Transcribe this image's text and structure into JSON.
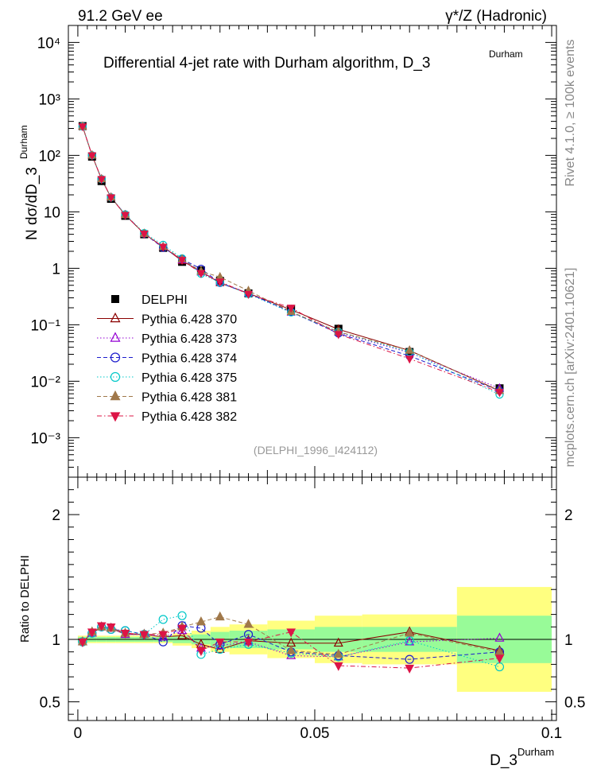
{
  "header": {
    "left": "91.2 GeV ee",
    "right": "γ*/Z (Hadronic)"
  },
  "side_labels": {
    "rivet": "Rivet 4.1.0, ≥ 100k events",
    "mcplots": "mcplots.cern.ch [arXiv:2401.10621]"
  },
  "chart_data": [
    {
      "type": "scatter",
      "title": "Differential 4-jet rate with Durham algorithm, D_3",
      "title_sup": "Durham",
      "analysis_id": "(DELPHI_1996_I424112)",
      "ylabel": "N  dσ/dD_3",
      "ylabel_sup": "Durham",
      "yscale": "log",
      "ylim": [
        0.0002,
        20000
      ],
      "xlim": [
        -0.002,
        0.101
      ],
      "y_tick_labels": [
        "10⁻³",
        "10⁻²",
        "10⁻¹",
        "1",
        "10",
        "10²",
        "10³",
        "10⁴"
      ],
      "legend_position": "middle-left",
      "x": [
        0.001,
        0.003,
        0.005,
        0.007,
        0.01,
        0.014,
        0.018,
        0.022,
        0.026,
        0.03,
        0.036,
        0.045,
        0.055,
        0.07,
        0.089
      ],
      "series": [
        {
          "name": "DELPHI",
          "color": "#000000",
          "marker": "square",
          "line": "none",
          "values": [
            330,
            95,
            35,
            17,
            8.5,
            4.0,
            2.3,
            1.3,
            0.92,
            0.6,
            0.36,
            0.19,
            0.085,
            0.033,
            0.0075
          ]
        },
        {
          "name": "Pythia 6.428 370",
          "color": "#8b0000",
          "marker": "triangle-open",
          "line": "solid",
          "values": [
            325,
            100,
            38,
            18,
            8.8,
            4.1,
            2.4,
            1.35,
            0.88,
            0.55,
            0.36,
            0.185,
            0.083,
            0.035,
            0.0068
          ]
        },
        {
          "name": "Pythia 6.428 373",
          "color": "#9400d3",
          "marker": "triangle-open",
          "line": "dotted",
          "values": [
            325,
            100,
            38,
            18,
            8.8,
            4.1,
            2.4,
            1.4,
            0.85,
            0.57,
            0.36,
            0.165,
            0.073,
            0.032,
            0.0075
          ]
        },
        {
          "name": "Pythia 6.428 374",
          "color": "#1c1ccd",
          "marker": "circle-open",
          "line": "dashed",
          "values": [
            325,
            100,
            38,
            18,
            9.0,
            4.1,
            2.3,
            1.45,
            0.98,
            0.55,
            0.36,
            0.17,
            0.07,
            0.028,
            0.0068
          ]
        },
        {
          "name": "Pythia 6.428 375",
          "color": "#00c8c8",
          "marker": "circle-open",
          "line": "dotted",
          "values": [
            325,
            100,
            38,
            18,
            9.0,
            4.2,
            2.6,
            1.5,
            0.8,
            0.56,
            0.35,
            0.165,
            0.075,
            0.033,
            0.0058
          ]
        },
        {
          "name": "Pythia 6.428 381",
          "color": "#a0784a",
          "marker": "triangle-filled",
          "line": "dashed",
          "values": [
            325,
            100,
            38,
            18,
            8.8,
            4.1,
            2.4,
            1.45,
            0.88,
            0.7,
            0.4,
            0.17,
            0.075,
            0.035,
            0.0068
          ]
        },
        {
          "name": "Pythia 6.428 382",
          "color": "#dc1446",
          "marker": "triangle-down-filled",
          "line": "dashdot",
          "values": [
            325,
            100,
            38,
            18,
            8.8,
            4.1,
            2.4,
            1.4,
            0.82,
            0.58,
            0.35,
            0.2,
            0.068,
            0.025,
            0.0064
          ]
        }
      ]
    },
    {
      "type": "scatter",
      "title": "",
      "ylabel": "Ratio to DELPHI",
      "xlabel": "D_3",
      "xlabel_sup": "Durham",
      "ylim": [
        0.35,
        2.3
      ],
      "xlim": [
        -0.002,
        0.101
      ],
      "y_ticks": [
        0.5,
        1,
        2
      ],
      "y_tick_labels": [
        "0.5",
        "1",
        "2"
      ],
      "x_ticks": [
        0,
        0.05,
        0.1
      ],
      "x_tick_labels": [
        "0",
        "0.05",
        "0.1"
      ],
      "bands": {
        "edges": [
          0,
          0.002,
          0.004,
          0.006,
          0.008,
          0.012,
          0.016,
          0.02,
          0.024,
          0.028,
          0.032,
          0.04,
          0.05,
          0.06,
          0.08,
          0.1
        ],
        "inner_half_width": [
          0.02,
          0.02,
          0.02,
          0.02,
          0.02,
          0.02,
          0.02,
          0.03,
          0.04,
          0.06,
          0.07,
          0.08,
          0.1,
          0.1,
          0.19
        ],
        "outer_half_width": [
          0.03,
          0.03,
          0.03,
          0.03,
          0.03,
          0.03,
          0.03,
          0.05,
          0.07,
          0.1,
          0.12,
          0.15,
          0.19,
          0.2,
          0.42
        ],
        "inner_color": "#98fb98",
        "outer_color": "#ffff80"
      },
      "x": [
        0.001,
        0.003,
        0.005,
        0.007,
        0.01,
        0.014,
        0.018,
        0.022,
        0.026,
        0.03,
        0.036,
        0.045,
        0.055,
        0.07,
        0.089
      ],
      "series": [
        {
          "name": "Pythia 6.428 370",
          "color": "#8b0000",
          "marker": "triangle-open",
          "line": "solid",
          "values": [
            0.98,
            1.05,
            1.1,
            1.09,
            1.04,
            1.04,
            1.02,
            1.03,
            0.96,
            0.92,
            0.99,
            0.97,
            0.97,
            1.06,
            0.91
          ]
        },
        {
          "name": "Pythia 6.428 373",
          "color": "#9400d3",
          "marker": "triangle-open",
          "line": "dotted",
          "values": [
            0.98,
            1.05,
            1.1,
            1.09,
            1.04,
            1.04,
            1.02,
            1.07,
            0.93,
            0.95,
            0.98,
            0.87,
            0.86,
            0.98,
            1.01
          ]
        },
        {
          "name": "Pythia 6.428 374",
          "color": "#1c1ccd",
          "marker": "circle-open",
          "line": "dashed",
          "values": [
            0.98,
            1.05,
            1.1,
            1.08,
            1.07,
            1.04,
            0.98,
            1.11,
            1.09,
            0.96,
            1.04,
            0.9,
            0.87,
            0.84,
            0.9
          ]
        },
        {
          "name": "Pythia 6.428 375",
          "color": "#00c8c8",
          "marker": "circle-open",
          "line": "dotted",
          "values": [
            0.98,
            1.05,
            1.1,
            1.08,
            1.07,
            1.04,
            1.16,
            1.19,
            0.88,
            0.92,
            0.96,
            0.89,
            0.86,
            0.99,
            0.78
          ]
        },
        {
          "name": "Pythia 6.428 381",
          "color": "#a0784a",
          "marker": "triangle-filled",
          "line": "dashed",
          "values": [
            0.98,
            1.06,
            1.1,
            1.09,
            1.05,
            1.04,
            1.05,
            1.1,
            1.14,
            1.18,
            1.12,
            0.91,
            0.88,
            1.05,
            0.9
          ]
        },
        {
          "name": "Pythia 6.428 382",
          "color": "#dc1446",
          "marker": "triangle-down-filled",
          "line": "dashdot",
          "values": [
            0.98,
            1.06,
            1.11,
            1.1,
            1.05,
            1.04,
            1.04,
            1.09,
            0.91,
            0.98,
            0.98,
            1.06,
            0.79,
            0.77,
            0.85
          ]
        }
      ]
    }
  ]
}
